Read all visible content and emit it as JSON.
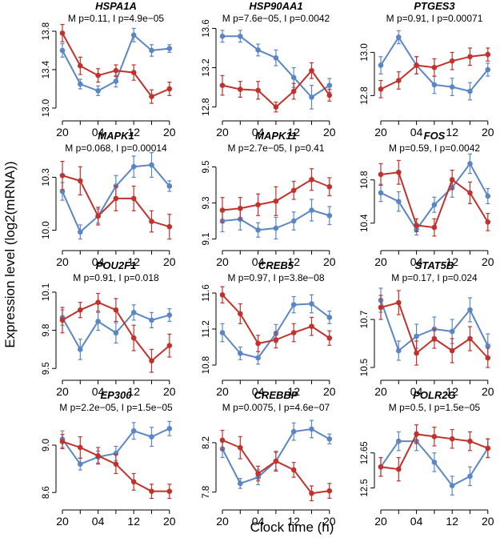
{
  "figure": {
    "ylabel": "Expression level (log2(mRNA))",
    "xlabel": "Clock time (h)",
    "x_tick_labels": [
      "20",
      "04",
      "12",
      "20"
    ],
    "colors": {
      "series_M": "#5B86C5",
      "series_I": "#C0322B",
      "axis": "#000000"
    }
  },
  "chart_data": [
    {
      "type": "line",
      "title": "HSPA1A",
      "subtitle": "M p=0.11, I p=4.9e−05",
      "x": [
        0,
        1,
        2,
        3,
        4,
        5,
        6
      ],
      "ylim": [
        12.95,
        13.85
      ],
      "yticks": [
        13.0,
        13.4,
        13.8
      ],
      "series": [
        {
          "name": "M",
          "values": [
            13.6,
            13.25,
            13.18,
            13.28,
            13.76,
            13.6,
            13.62
          ],
          "err": [
            0.07,
            0.05,
            0.05,
            0.06,
            0.07,
            0.06,
            0.04
          ]
        },
        {
          "name": "I",
          "values": [
            13.78,
            13.44,
            13.34,
            13.39,
            13.37,
            13.12,
            13.2
          ],
          "err": [
            0.09,
            0.09,
            0.07,
            0.06,
            0.08,
            0.07,
            0.07
          ]
        }
      ]
    },
    {
      "type": "line",
      "title": "HSP90AA1",
      "subtitle": "M p=7.6e−05, I p=0.0042",
      "x": [
        0,
        1,
        2,
        3,
        4,
        5,
        6
      ],
      "ylim": [
        12.74,
        13.62
      ],
      "yticks": [
        12.8,
        13.2,
        13.6
      ],
      "series": [
        {
          "name": "M",
          "values": [
            13.52,
            13.52,
            13.38,
            13.3,
            13.1,
            12.9,
            13.02
          ],
          "err": [
            0.06,
            0.06,
            0.06,
            0.08,
            0.1,
            0.12,
            0.07
          ]
        },
        {
          "name": "I",
          "values": [
            13.02,
            12.98,
            12.97,
            12.8,
            12.96,
            13.17,
            12.92
          ],
          "err": [
            0.1,
            0.08,
            0.09,
            0.05,
            0.08,
            0.08,
            0.06
          ]
        }
      ]
    },
    {
      "type": "line",
      "title": "PTGES3",
      "subtitle": "M p=0.91, I p=0.00071",
      "x": [
        0,
        1,
        2,
        3,
        4,
        5,
        6
      ],
      "ylim": [
        12.72,
        13.12
      ],
      "yticks": [
        12.8,
        13.0
      ],
      "series": [
        {
          "name": "M",
          "values": [
            12.94,
            13.07,
            12.94,
            12.85,
            12.84,
            12.82,
            12.92
          ],
          "err": [
            0.04,
            0.03,
            0.04,
            0.04,
            0.04,
            0.04,
            0.03
          ]
        },
        {
          "name": "I",
          "values": [
            12.83,
            12.87,
            12.94,
            12.93,
            12.96,
            12.98,
            12.99
          ],
          "err": [
            0.04,
            0.04,
            0.04,
            0.04,
            0.04,
            0.04,
            0.03
          ]
        }
      ]
    },
    {
      "type": "line",
      "title": "MAPK1",
      "subtitle": "M p=0.068, I p=0.00014",
      "x": [
        0,
        1,
        2,
        3,
        4,
        5,
        6
      ],
      "ylim": [
        9.93,
        10.42
      ],
      "yticks": [
        10.0,
        10.3
      ],
      "series": [
        {
          "name": "M",
          "values": [
            10.22,
            9.99,
            10.08,
            10.25,
            10.36,
            10.37,
            10.25
          ],
          "err": [
            0.05,
            0.04,
            0.04,
            0.06,
            0.06,
            0.07,
            0.03
          ]
        },
        {
          "name": "I",
          "values": [
            10.31,
            10.28,
            10.08,
            10.18,
            10.18,
            10.05,
            10.02
          ],
          "err": [
            0.08,
            0.08,
            0.05,
            0.07,
            0.07,
            0.06,
            0.07
          ]
        }
      ]
    },
    {
      "type": "line",
      "title": "MAPK11",
      "subtitle": "M p=2.7e−05, I p=0.41",
      "x": [
        0,
        1,
        2,
        3,
        4,
        5,
        6
      ],
      "ylim": [
        9.08,
        9.56
      ],
      "yticks": [
        9.1,
        9.3,
        9.5
      ],
      "series": [
        {
          "name": "M",
          "values": [
            9.2,
            9.21,
            9.15,
            9.16,
            9.2,
            9.26,
            9.23
          ],
          "err": [
            0.06,
            0.06,
            0.04,
            0.06,
            0.05,
            0.06,
            0.05
          ]
        },
        {
          "name": "I",
          "values": [
            9.26,
            9.27,
            9.29,
            9.31,
            9.37,
            9.43,
            9.39
          ],
          "err": [
            0.07,
            0.06,
            0.06,
            0.08,
            0.05,
            0.06,
            0.05
          ]
        }
      ]
    },
    {
      "type": "line",
      "title": "FOS",
      "subtitle": "M p=0.59, I p=0.0042",
      "x": [
        0,
        1,
        2,
        3,
        4,
        5,
        6
      ],
      "ylim": [
        10.22,
        11.02
      ],
      "yticks": [
        10.4,
        10.8
      ],
      "series": [
        {
          "name": "M",
          "values": [
            10.68,
            10.6,
            10.34,
            10.57,
            10.73,
            10.95,
            10.65
          ],
          "err": [
            0.08,
            0.09,
            0.05,
            0.07,
            0.09,
            0.09,
            0.07
          ]
        },
        {
          "name": "I",
          "values": [
            10.85,
            10.87,
            10.38,
            10.36,
            10.8,
            10.68,
            10.41
          ],
          "err": [
            0.1,
            0.11,
            0.06,
            0.08,
            0.09,
            0.1,
            0.08
          ]
        }
      ]
    },
    {
      "type": "line",
      "title": "POU2F1",
      "subtitle": "M p=0.91, I p=0.018",
      "x": [
        0,
        1,
        2,
        3,
        4,
        5,
        6
      ],
      "ylim": [
        9.47,
        10.15
      ],
      "yticks": [
        9.5,
        9.8,
        10.1
      ],
      "series": [
        {
          "name": "M",
          "values": [
            9.9,
            9.65,
            9.87,
            9.78,
            9.94,
            9.88,
            9.92
          ],
          "err": [
            0.06,
            0.08,
            0.07,
            0.08,
            0.06,
            0.06,
            0.05
          ]
        },
        {
          "name": "I",
          "values": [
            9.88,
            9.96,
            10.02,
            9.96,
            9.74,
            9.56,
            9.68
          ],
          "err": [
            0.1,
            0.06,
            0.07,
            0.09,
            0.1,
            0.09,
            0.09
          ]
        }
      ]
    },
    {
      "type": "line",
      "title": "CREB5",
      "subtitle": "M p=0.97, I p=3.8e−08",
      "x": [
        0,
        1,
        2,
        3,
        4,
        5,
        6
      ],
      "ylim": [
        10.72,
        11.68
      ],
      "yticks": [
        10.8,
        11.2,
        11.6
      ],
      "series": [
        {
          "name": "M",
          "values": [
            11.16,
            10.93,
            10.88,
            11.15,
            11.47,
            11.48,
            11.33
          ],
          "err": [
            0.1,
            0.07,
            0.07,
            0.1,
            0.09,
            0.1,
            0.07
          ]
        },
        {
          "name": "I",
          "values": [
            11.58,
            11.37,
            11.04,
            11.08,
            11.16,
            11.23,
            11.1
          ],
          "err": [
            0.09,
            0.11,
            0.09,
            0.09,
            0.1,
            0.1,
            0.08
          ]
        }
      ]
    },
    {
      "type": "line",
      "title": "STAT5B",
      "subtitle": "M p=0.17, I p=0.024",
      "x": [
        0,
        1,
        2,
        3,
        4,
        5,
        6
      ],
      "ylim": [
        10.48,
        10.84
      ],
      "yticks": [
        10.5,
        10.7
      ],
      "series": [
        {
          "name": "M",
          "values": [
            10.78,
            10.57,
            10.63,
            10.66,
            10.65,
            10.74,
            10.59
          ],
          "err": [
            0.05,
            0.04,
            0.05,
            0.05,
            0.05,
            0.05,
            0.05
          ]
        },
        {
          "name": "I",
          "values": [
            10.75,
            10.77,
            10.56,
            10.62,
            10.57,
            10.62,
            10.54
          ],
          "err": [
            0.05,
            0.05,
            0.05,
            0.04,
            0.05,
            0.05,
            0.04
          ]
        }
      ]
    },
    {
      "type": "line",
      "title": "EP300",
      "subtitle": "M p=2.2e−05, I p=1.5e−05",
      "x": [
        0,
        1,
        2,
        3,
        4,
        5,
        6
      ],
      "ylim": [
        8.52,
        9.25
      ],
      "yticks": [
        8.6,
        9.0
      ],
      "series": [
        {
          "name": "M",
          "values": [
            9.05,
            8.84,
            8.9,
            8.93,
            9.12,
            9.07,
            9.14
          ],
          "err": [
            0.07,
            0.05,
            0.05,
            0.06,
            0.07,
            0.08,
            0.06
          ]
        },
        {
          "name": "I",
          "values": [
            9.03,
            8.98,
            8.91,
            8.84,
            8.69,
            8.61,
            8.61
          ],
          "err": [
            0.06,
            0.09,
            0.07,
            0.08,
            0.07,
            0.06,
            0.06
          ]
        }
      ]
    },
    {
      "type": "line",
      "title": "CREBBP",
      "subtitle": "M p=0.0075, I p=4.6e−07",
      "x": [
        0,
        1,
        2,
        3,
        4,
        5,
        6
      ],
      "ylim": [
        7.72,
        8.42
      ],
      "yticks": [
        7.8,
        8.2
      ],
      "series": [
        {
          "name": "M",
          "values": [
            8.15,
            7.87,
            7.92,
            8.05,
            8.29,
            8.31,
            8.23
          ],
          "err": [
            0.07,
            0.04,
            0.06,
            0.07,
            0.07,
            0.07,
            0.04
          ]
        },
        {
          "name": "I",
          "values": [
            8.22,
            8.16,
            7.95,
            8.05,
            7.98,
            7.79,
            7.81
          ],
          "err": [
            0.08,
            0.09,
            0.06,
            0.08,
            0.06,
            0.06,
            0.06
          ]
        }
      ]
    },
    {
      "type": "line",
      "title": "POLR2G",
      "subtitle": "M p=0.5, I p=1.5e−05",
      "x": [
        0,
        1,
        2,
        3,
        4,
        5,
        6
      ],
      "ylim": [
        12.44,
        12.81
      ],
      "yticks": [
        12.5,
        12.65
      ],
      "series": [
        {
          "name": "M",
          "values": [
            12.59,
            12.7,
            12.7,
            12.61,
            12.51,
            12.55,
            12.67
          ],
          "err": [
            0.04,
            0.04,
            0.04,
            0.04,
            0.04,
            0.04,
            0.04
          ]
        },
        {
          "name": "I",
          "values": [
            12.59,
            12.58,
            12.73,
            12.72,
            12.71,
            12.7,
            12.67
          ],
          "err": [
            0.04,
            0.05,
            0.04,
            0.04,
            0.04,
            0.04,
            0.04
          ]
        }
      ]
    }
  ]
}
